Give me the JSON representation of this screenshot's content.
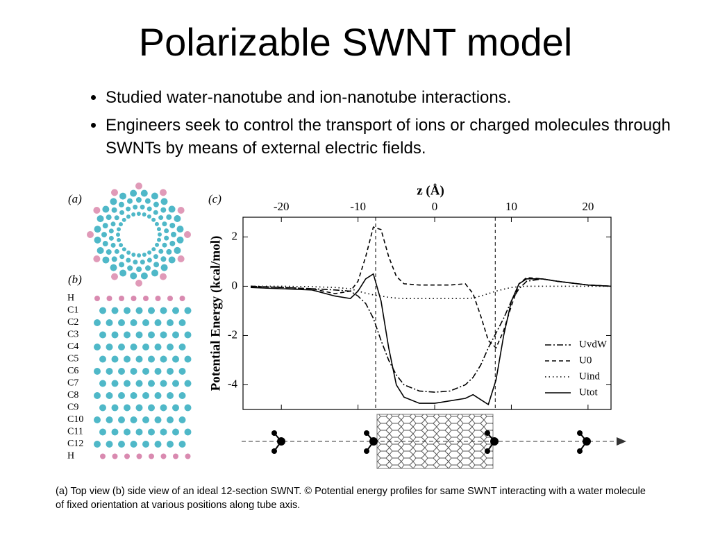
{
  "header": {
    "title": "Polarizable SWNT model"
  },
  "bullets": [
    "Studied water-nanotube and ion-nanotube interactions.",
    "Engineers seek to control the transport of ions or charged molecules through SWNTs by means of external electric fields."
  ],
  "figure": {
    "panel_labels": [
      "(a)",
      "(b)",
      "(c)"
    ],
    "atom_labels": [
      "H",
      "C1",
      "C2",
      "C3",
      "C4",
      "C5",
      "C6",
      "C7",
      "C8",
      "C9",
      "C10",
      "C11",
      "C12",
      "H"
    ]
  },
  "chart_data": {
    "type": "line",
    "xlabel": "z (Å)",
    "ylabel": "Potential Energy (kcal/mol)",
    "xlim": [
      -25,
      23
    ],
    "xticks": [
      -20,
      -10,
      0,
      10,
      20
    ],
    "ylim": [
      -5,
      2.8
    ],
    "yticks": [
      -4,
      -2,
      0,
      2
    ],
    "vlines": [
      -7.7,
      7.9
    ],
    "x": [
      -24,
      -20,
      -16,
      -13,
      -11,
      -10,
      -9,
      -8,
      -7,
      -6,
      -5,
      -4,
      -2,
      0,
      2,
      4,
      5,
      6,
      7,
      8,
      9,
      10,
      11,
      12,
      14,
      16,
      20,
      23
    ],
    "series": [
      {
        "name": "UvdW",
        "color": "#000000",
        "dash": "dashdot",
        "values": [
          0,
          -0.05,
          -0.1,
          -0.15,
          -0.2,
          -0.4,
          -0.7,
          -1.3,
          -2.2,
          -3.0,
          -3.6,
          -4.0,
          -4.25,
          -4.3,
          -4.25,
          -4.0,
          -3.7,
          -3.2,
          -2.5,
          -1.9,
          -1.3,
          -0.6,
          -0.1,
          0.2,
          0.3,
          0.2,
          0.05,
          0
        ]
      },
      {
        "name": "U0",
        "color": "#000000",
        "dash": "dashed",
        "values": [
          0,
          -0.05,
          -0.1,
          -0.3,
          -0.2,
          0.2,
          1.2,
          2.4,
          2.3,
          1.2,
          0.4,
          0.1,
          0.05,
          0.05,
          0.05,
          0.1,
          -0.3,
          -1.2,
          -2.2,
          -2.5,
          -1.8,
          -0.8,
          0.1,
          0.35,
          0.3,
          0.2,
          0.05,
          0
        ]
      },
      {
        "name": "Uind",
        "color": "#000000",
        "dash": "dotted",
        "values": [
          0,
          0,
          -0.02,
          -0.05,
          -0.1,
          -0.2,
          -0.28,
          -0.35,
          -0.4,
          -0.45,
          -0.48,
          -0.5,
          -0.5,
          -0.5,
          -0.5,
          -0.5,
          -0.48,
          -0.4,
          -0.3,
          -0.2,
          -0.12,
          -0.05,
          -0.02,
          0,
          0,
          0,
          0,
          0
        ]
      },
      {
        "name": "Utot",
        "color": "#000000",
        "dash": "solid",
        "values": [
          -0.05,
          -0.1,
          -0.15,
          -0.4,
          -0.5,
          -0.2,
          0.3,
          0.5,
          -0.6,
          -2.5,
          -4.0,
          -4.5,
          -4.75,
          -4.75,
          -4.65,
          -4.55,
          -4.4,
          -4.6,
          -4.8,
          -3.8,
          -2.0,
          -0.6,
          0.1,
          0.3,
          0.3,
          0.2,
          0.05,
          0
        ]
      }
    ]
  },
  "caption": "(a) Top view (b) side view of an ideal 12-section SWNT.  © Potential energy profiles for same SWNT interacting with a water molecule of fixed orientation at various positions along tube axis."
}
